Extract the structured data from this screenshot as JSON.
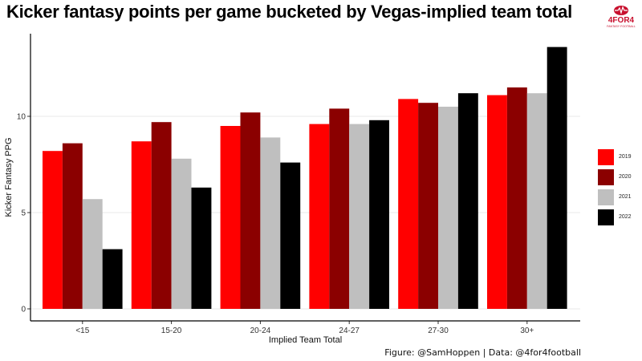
{
  "header": {
    "title": "Kicker fantasy points per game bucketed by Vegas-implied team total",
    "logo_text": "4FOR4",
    "logo_subtext": "FANTASY FOOTBALL"
  },
  "caption": "Figure: @SamHoppen | Data: @4for4football",
  "colors": {
    "2019": "#ff0000",
    "2020": "#8b0000",
    "2021": "#bfbfbf",
    "2022": "#000000",
    "logo": "#c8102e"
  },
  "chart_data": {
    "type": "bar",
    "title": "Kicker fantasy points per game bucketed by Vegas-implied team total",
    "xlabel": "Implied Team Total",
    "ylabel": "Kicker Fantasy PPG",
    "categories": [
      "<15",
      "15-20",
      "20-24",
      "24-27",
      "27-30",
      "30+"
    ],
    "ylim": [
      0,
      14
    ],
    "yticks": [
      0,
      5,
      10
    ],
    "grid": true,
    "legend_position": "right",
    "series": [
      {
        "name": "2019",
        "color": "#ff0000",
        "values": [
          8.2,
          8.7,
          9.5,
          9.6,
          10.9,
          11.1
        ]
      },
      {
        "name": "2020",
        "color": "#8b0000",
        "values": [
          8.6,
          9.7,
          10.2,
          10.4,
          10.7,
          11.5
        ]
      },
      {
        "name": "2021",
        "color": "#bfbfbf",
        "values": [
          5.7,
          7.8,
          8.9,
          9.6,
          10.5,
          11.2
        ]
      },
      {
        "name": "2022",
        "color": "#000000",
        "values": [
          3.1,
          6.3,
          7.6,
          9.8,
          11.2,
          13.6
        ]
      }
    ]
  }
}
